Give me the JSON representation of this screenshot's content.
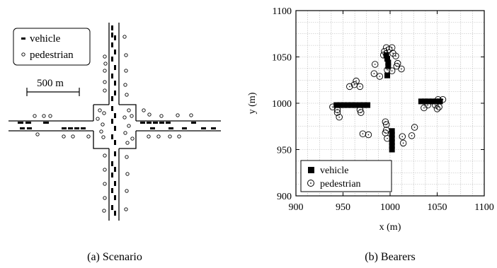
{
  "scenario": {
    "caption": "(a)  Scenario",
    "legend": {
      "vehicle": "vehicle",
      "pedestrian": "pedestrian"
    },
    "scale_label": "500 m"
  },
  "chart_data": {
    "type": "scatter",
    "caption": "(b)  Bearers",
    "xlabel": "x (m)",
    "ylabel": "y (m)",
    "xlim": [
      900,
      1100
    ],
    "ylim": [
      900,
      1100
    ],
    "xticks": [
      900,
      950,
      1000,
      1050,
      1100
    ],
    "yticks": [
      900,
      950,
      1000,
      1050,
      1100
    ],
    "grid": true,
    "legend_position": "bottom-left",
    "series": [
      {
        "name": "vehicle",
        "marker": "filled-square",
        "points": [
          [
            943,
            998
          ],
          [
            947,
            998
          ],
          [
            951,
            998
          ],
          [
            955,
            998
          ],
          [
            959,
            998
          ],
          [
            963,
            998
          ],
          [
            968,
            998
          ],
          [
            972,
            998
          ],
          [
            976,
            998
          ],
          [
            1033,
            1002
          ],
          [
            1037,
            1002
          ],
          [
            1041,
            1002
          ],
          [
            1045,
            1002
          ],
          [
            1049,
            1002
          ],
          [
            1053,
            1002
          ],
          [
            997,
            1030
          ],
          [
            998,
            1040
          ],
          [
            998,
            1044
          ],
          [
            997,
            1048
          ],
          [
            996,
            1052
          ],
          [
            1002,
            950
          ],
          [
            1002,
            954
          ],
          [
            1002,
            958
          ],
          [
            1002,
            962
          ],
          [
            1002,
            966
          ],
          [
            1002,
            970
          ]
        ]
      },
      {
        "name": "pedestrian",
        "marker": "circle-dot",
        "points": [
          [
            939,
            996
          ],
          [
            944,
            993
          ],
          [
            944,
            990
          ],
          [
            946,
            985
          ],
          [
            957,
            1018
          ],
          [
            962,
            1020
          ],
          [
            964,
            1024
          ],
          [
            968,
            1018
          ],
          [
            969,
            990
          ],
          [
            968,
            993
          ],
          [
            971,
            967
          ],
          [
            977,
            966
          ],
          [
            983,
            1032
          ],
          [
            984,
            1042
          ],
          [
            989,
            1029
          ],
          [
            993,
            1052
          ],
          [
            994,
            1056
          ],
          [
            996,
            1060
          ],
          [
            999,
            1058
          ],
          [
            1002,
            1060
          ],
          [
            1003,
            1054
          ],
          [
            1006,
            1051
          ],
          [
            1008,
            1043
          ],
          [
            1007,
            1040
          ],
          [
            1012,
            1037
          ],
          [
            1002,
            1035
          ],
          [
            997,
            1036
          ],
          [
            995,
            980
          ],
          [
            996,
            977
          ],
          [
            996,
            971
          ],
          [
            995,
            968
          ],
          [
            997,
            962
          ],
          [
            1013,
            964
          ],
          [
            1014,
            957
          ],
          [
            1023,
            965
          ],
          [
            1026,
            974
          ],
          [
            1036,
            995
          ],
          [
            1040,
            998
          ],
          [
            1048,
            998
          ],
          [
            1050,
            994
          ],
          [
            1052,
            996
          ],
          [
            1056,
            1004
          ],
          [
            1051,
            1004
          ]
        ]
      }
    ]
  }
}
